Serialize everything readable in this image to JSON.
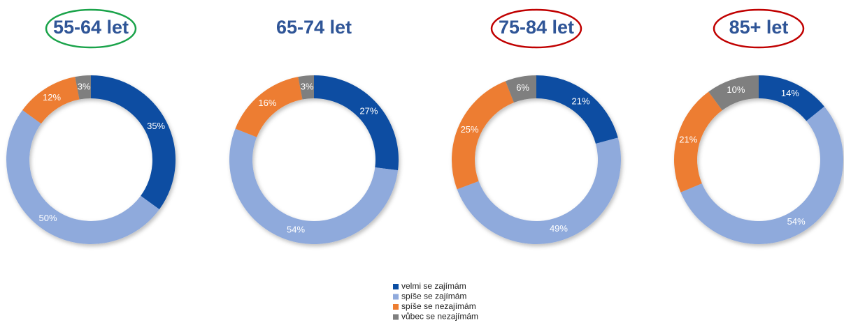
{
  "chart_data": [
    {
      "type": "donut",
      "title": "55-64 let",
      "title_outline": "#1aa34a",
      "categories": [
        "velmi se zajímám",
        "spíše se zajímám",
        "spíše se nezajímám",
        "vůbec se nezajímám"
      ],
      "values": [
        35,
        50,
        12,
        3
      ],
      "value_labels": [
        "35%",
        "50%",
        "12%",
        "3%"
      ],
      "colors": [
        "#0b4ea2",
        "#8faadc",
        "#ed7d31",
        "#7f7f7f"
      ]
    },
    {
      "type": "donut",
      "title": "65-74 let",
      "categories": [
        "velmi se zajímám",
        "spíše se zajímám",
        "spíše se nezajímám",
        "vůbec se nezajímám"
      ],
      "values": [
        27,
        54,
        16,
        3
      ],
      "value_labels": [
        "27%",
        "54%",
        "16%",
        "3%"
      ],
      "colors": [
        "#0b4ea2",
        "#8faadc",
        "#ed7d31",
        "#7f7f7f"
      ]
    },
    {
      "type": "donut",
      "title": "75-84 let",
      "title_outline": "#c00000",
      "categories": [
        "velmi se zajímám",
        "spíše se zajímám",
        "spíše se nezajímám",
        "vůbec se nezajímám"
      ],
      "values": [
        21,
        49,
        25,
        6
      ],
      "value_labels": [
        "21%",
        "49%",
        "25%",
        "6%"
      ],
      "colors": [
        "#0b4ea2",
        "#8faadc",
        "#ed7d31",
        "#7f7f7f"
      ]
    },
    {
      "type": "donut",
      "title": "85+ let",
      "title_outline": "#c00000",
      "categories": [
        "velmi se zajímám",
        "spíše se zajímám",
        "spíše se nezajímám",
        "vůbec se nezajímám"
      ],
      "values": [
        14,
        54,
        21,
        10
      ],
      "value_labels": [
        "14%",
        "54%",
        "21%",
        "10%"
      ],
      "colors": [
        "#0b4ea2",
        "#8faadc",
        "#ed7d31",
        "#7f7f7f"
      ]
    }
  ]
}
